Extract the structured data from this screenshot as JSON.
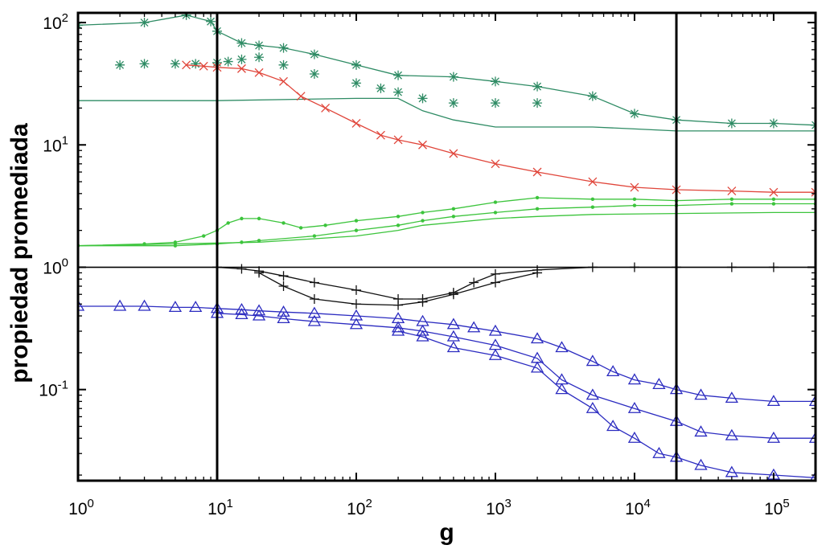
{
  "chart_data": {
    "type": "scatter",
    "title": "",
    "xlabel": "g",
    "ylabel": "propiedad promediada",
    "x_scale": "log",
    "y_scale": "log",
    "xlim": [
      1,
      200000
    ],
    "ylim": [
      0.018,
      120
    ],
    "grid": false,
    "legend": "none",
    "x_ticks": [
      {
        "value": 1,
        "base": "10",
        "exp": "0"
      },
      {
        "value": 10,
        "base": "10",
        "exp": "1"
      },
      {
        "value": 100,
        "base": "10",
        "exp": "2"
      },
      {
        "value": 1000,
        "base": "10",
        "exp": "3"
      },
      {
        "value": 10000,
        "base": "10",
        "exp": "4"
      },
      {
        "value": 100000,
        "base": "10",
        "exp": "5"
      }
    ],
    "y_ticks": [
      {
        "value": 0.1,
        "base": "10",
        "exp": "-1"
      },
      {
        "value": 1,
        "base": "10",
        "exp": "0"
      },
      {
        "value": 10,
        "base": "10",
        "exp": "1"
      },
      {
        "value": 100,
        "base": "10",
        "exp": "2"
      }
    ],
    "vertical_lines": [
      10,
      20000
    ],
    "horizontal_lines": [
      1
    ],
    "series": [
      {
        "color": "#2e8b64",
        "marker": "star",
        "line": true,
        "x": [
          1,
          3,
          6,
          9,
          10,
          15,
          20,
          30,
          50,
          100,
          200,
          500,
          1000,
          2000,
          5000,
          10000,
          20000,
          50000,
          100000,
          200000
        ],
        "y": [
          95,
          100,
          115,
          102,
          85,
          68,
          65,
          62,
          55,
          45,
          37,
          36,
          33,
          30,
          25,
          18,
          16,
          15,
          15,
          14.5
        ]
      },
      {
        "color": "#2e8b64",
        "marker": "star",
        "line": false,
        "x": [
          2,
          3,
          5,
          7,
          10,
          12,
          15,
          20,
          30,
          50,
          100,
          150,
          200,
          300,
          500,
          1000,
          2000
        ],
        "y": [
          45,
          46,
          46,
          46,
          47,
          48,
          50,
          52,
          45,
          38,
          32,
          29,
          27,
          24,
          22,
          22,
          22
        ]
      },
      {
        "color": "#2e8b64",
        "marker": "none",
        "line": true,
        "x": [
          1,
          10,
          100,
          200,
          300,
          500,
          1000,
          2000,
          5000,
          10000,
          20000,
          50000,
          100000,
          200000
        ],
        "y": [
          23,
          23,
          24,
          24,
          19,
          16,
          14,
          14,
          14,
          13.5,
          13,
          13,
          13,
          13
        ]
      },
      {
        "color": "#e0453a",
        "marker": "x",
        "line": true,
        "x": [
          6,
          8,
          10,
          15,
          20,
          30,
          40,
          60,
          100,
          150,
          200,
          300,
          500,
          1000,
          2000,
          5000,
          10000,
          20000,
          50000,
          100000,
          200000
        ],
        "y": [
          45,
          44,
          43,
          42,
          39,
          33,
          25,
          20,
          15,
          12,
          11,
          10,
          8.5,
          7,
          6,
          5,
          4.5,
          4.3,
          4.2,
          4.1,
          4.1
        ]
      },
      {
        "color": "#3cc43c",
        "marker": "dot",
        "line": true,
        "x": [
          1,
          3,
          5,
          8,
          10,
          12,
          15,
          20,
          30,
          40,
          60,
          100,
          200,
          300,
          500,
          1000,
          2000,
          5000,
          10000,
          20000,
          50000,
          100000,
          200000
        ],
        "y": [
          1.5,
          1.55,
          1.6,
          1.8,
          2.0,
          2.3,
          2.5,
          2.5,
          2.3,
          2.1,
          2.2,
          2.4,
          2.6,
          2.8,
          3.0,
          3.4,
          3.7,
          3.6,
          3.6,
          3.5,
          3.6,
          3.6,
          3.6
        ]
      },
      {
        "color": "#3cc43c",
        "marker": "dot",
        "line": true,
        "x": [
          1,
          5,
          10,
          15,
          20,
          50,
          100,
          200,
          300,
          500,
          1000,
          2000,
          5000,
          10000,
          20000,
          50000,
          100000,
          200000
        ],
        "y": [
          1.5,
          1.5,
          1.55,
          1.6,
          1.65,
          1.8,
          2.0,
          2.2,
          2.4,
          2.6,
          2.8,
          3.0,
          3.1,
          3.2,
          3.2,
          3.3,
          3.3,
          3.3
        ]
      },
      {
        "color": "#3cc43c",
        "marker": "none",
        "line": true,
        "x": [
          1,
          20,
          100,
          200,
          300,
          1000,
          2000,
          5000,
          20000,
          100000,
          200000
        ],
        "y": [
          1.5,
          1.6,
          1.8,
          2.0,
          2.2,
          2.5,
          2.6,
          2.7,
          2.75,
          2.8,
          2.8
        ]
      },
      {
        "color": "#111111",
        "marker": "plus",
        "line": true,
        "x": [
          1,
          10,
          15,
          20,
          30,
          50,
          100,
          200,
          300,
          500,
          700,
          1000,
          2000,
          5000,
          10000,
          20000,
          50000,
          100000,
          200000
        ],
        "y": [
          1,
          1,
          0.97,
          0.93,
          0.85,
          0.75,
          0.65,
          0.55,
          0.55,
          0.62,
          0.75,
          0.88,
          0.95,
          1,
          1,
          1,
          1,
          1,
          1
        ]
      },
      {
        "color": "#111111",
        "marker": "plus",
        "line": true,
        "x": [
          20,
          30,
          50,
          100,
          200,
          300,
          500,
          1000,
          2000
        ],
        "y": [
          0.9,
          0.7,
          0.55,
          0.5,
          0.49,
          0.52,
          0.6,
          0.75,
          0.9
        ]
      },
      {
        "color": "#2b2bc0",
        "marker": "triangle",
        "line": true,
        "x": [
          1,
          2,
          3,
          5,
          7,
          10,
          15,
          20,
          30,
          50,
          100,
          200,
          300,
          500,
          700,
          1000,
          2000,
          3000,
          5000,
          7000,
          10000,
          15000,
          20000,
          30000,
          50000,
          100000,
          200000
        ],
        "y": [
          0.48,
          0.48,
          0.48,
          0.47,
          0.47,
          0.46,
          0.45,
          0.44,
          0.43,
          0.42,
          0.4,
          0.38,
          0.36,
          0.34,
          0.32,
          0.3,
          0.26,
          0.22,
          0.17,
          0.14,
          0.12,
          0.11,
          0.1,
          0.09,
          0.085,
          0.08,
          0.08
        ]
      },
      {
        "color": "#2b2bc0",
        "marker": "triangle",
        "line": true,
        "x": [
          10,
          15,
          20,
          30,
          50,
          100,
          200,
          300,
          500,
          1000,
          2000,
          3000,
          5000,
          10000,
          20000,
          30000,
          50000,
          100000,
          200000
        ],
        "y": [
          0.42,
          0.41,
          0.4,
          0.38,
          0.36,
          0.34,
          0.32,
          0.3,
          0.27,
          0.23,
          0.18,
          0.12,
          0.09,
          0.07,
          0.055,
          0.045,
          0.042,
          0.04,
          0.04
        ]
      },
      {
        "color": "#2b2bc0",
        "marker": "triangle",
        "line": true,
        "x": [
          200,
          300,
          500,
          1000,
          2000,
          3000,
          5000,
          7000,
          10000,
          15000,
          20000,
          30000,
          50000,
          100000,
          200000
        ],
        "y": [
          0.3,
          0.27,
          0.22,
          0.19,
          0.15,
          0.1,
          0.07,
          0.05,
          0.04,
          0.03,
          0.028,
          0.024,
          0.021,
          0.02,
          0.019
        ]
      }
    ]
  }
}
